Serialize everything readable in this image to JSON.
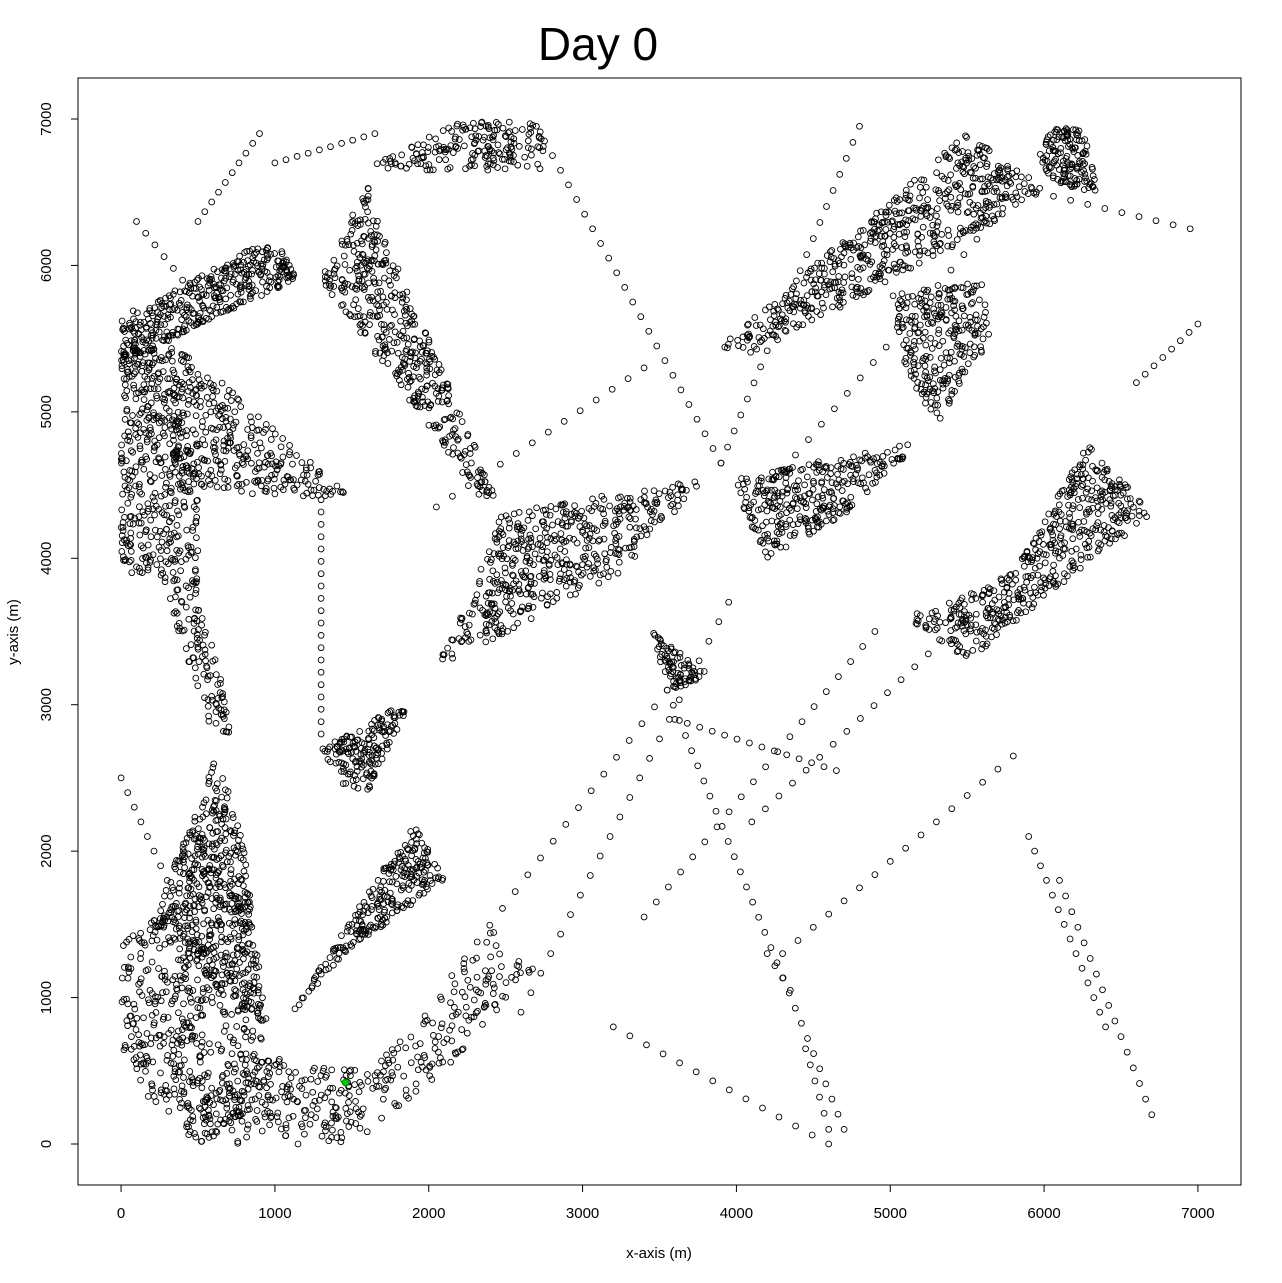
{
  "chart_data": {
    "type": "scatter",
    "title": "Day 0",
    "xlabel": "x-axis (m)",
    "ylabel": "y-axis (m)",
    "xlim": [
      -280,
      7280
    ],
    "ylim": [
      -280,
      7280
    ],
    "x_ticks": [
      0,
      1000,
      2000,
      3000,
      4000,
      5000,
      6000,
      7000
    ],
    "y_ticks": [
      0,
      1000,
      2000,
      3000,
      4000,
      5000,
      6000,
      7000
    ],
    "grid": false,
    "legend": "none",
    "marker": "open-circle",
    "colors": {
      "points": "#000000",
      "highlight": "#00cc00",
      "background": "#ffffff"
    },
    "highlight_points": [
      {
        "x": 1460,
        "y": 420
      }
    ],
    "dense_regions": [
      {
        "name": "upper-center-cluster",
        "poly": [
          [
            1650,
            6700
          ],
          [
            2200,
            6980
          ],
          [
            2750,
            6980
          ],
          [
            2750,
            6650
          ],
          [
            1650,
            6650
          ]
        ],
        "count": 180
      },
      {
        "name": "upper-left-band",
        "poly": [
          [
            0,
            5650
          ],
          [
            300,
            5800
          ],
          [
            900,
            6150
          ],
          [
            1050,
            6100
          ],
          [
            1150,
            5900
          ],
          [
            500,
            5600
          ],
          [
            0,
            5300
          ]
        ],
        "count": 360
      },
      {
        "name": "left-column",
        "poly": [
          [
            0,
            5650
          ],
          [
            400,
            5300
          ],
          [
            500,
            4400
          ],
          [
            500,
            3700
          ],
          [
            650,
            3300
          ],
          [
            720,
            2800
          ],
          [
            600,
            2800
          ],
          [
            400,
            3400
          ],
          [
            250,
            3900
          ],
          [
            0,
            3900
          ]
        ],
        "count": 520
      },
      {
        "name": "left-triangle",
        "poly": [
          [
            300,
            5450
          ],
          [
            500,
            5350
          ],
          [
            1450,
            4450
          ],
          [
            1200,
            4400
          ],
          [
            350,
            4500
          ]
        ],
        "count": 320
      },
      {
        "name": "center-top-triangle",
        "poly": [
          [
            1600,
            6550
          ],
          [
            1650,
            6350
          ],
          [
            2450,
            4400
          ],
          [
            2350,
            4400
          ],
          [
            1300,
            5900
          ]
        ],
        "count": 420
      },
      {
        "name": "center-big-triangle",
        "poly": [
          [
            2450,
            4300
          ],
          [
            3800,
            4550
          ],
          [
            3250,
            3900
          ],
          [
            2050,
            3250
          ],
          [
            2300,
            3800
          ]
        ],
        "count": 480
      },
      {
        "name": "upper-right-band",
        "poly": [
          [
            3900,
            5450
          ],
          [
            5500,
            6900
          ],
          [
            5900,
            6600
          ],
          [
            6000,
            6500
          ],
          [
            5200,
            6000
          ],
          [
            4100,
            5400
          ],
          [
            3800,
            5450
          ]
        ],
        "count": 560
      },
      {
        "name": "upper-right-cluster",
        "poly": [
          [
            5950,
            6700
          ],
          [
            6050,
            6950
          ],
          [
            6250,
            6950
          ],
          [
            6350,
            6500
          ],
          [
            6100,
            6550
          ]
        ],
        "count": 140
      },
      {
        "name": "right-vertical-triangle",
        "poly": [
          [
            5000,
            5800
          ],
          [
            5600,
            5900
          ],
          [
            5650,
            5500
          ],
          [
            5300,
            4900
          ],
          [
            5100,
            5300
          ]
        ],
        "count": 260
      },
      {
        "name": "center-right-triangle",
        "poly": [
          [
            4000,
            4550
          ],
          [
            5200,
            4800
          ],
          [
            4700,
            4300
          ],
          [
            4200,
            4000
          ],
          [
            4050,
            4300
          ]
        ],
        "count": 300
      },
      {
        "name": "right-parallelogram",
        "poly": [
          [
            5100,
            3600
          ],
          [
            5500,
            3300
          ],
          [
            6700,
            4300
          ],
          [
            6300,
            4800
          ],
          [
            5800,
            3900
          ],
          [
            5400,
            3700
          ]
        ],
        "count": 460
      },
      {
        "name": "small-center-triangle",
        "poly": [
          [
            3450,
            3500
          ],
          [
            3700,
            3300
          ],
          [
            3850,
            3200
          ],
          [
            3600,
            3100
          ],
          [
            3500,
            3300
          ]
        ],
        "count": 80
      },
      {
        "name": "lower-left-triangle",
        "poly": [
          [
            600,
            2600
          ],
          [
            200,
            1500
          ],
          [
            700,
            1000
          ],
          [
            950,
            800
          ],
          [
            800,
            2000
          ],
          [
            700,
            2500
          ]
        ],
        "count": 520
      },
      {
        "name": "lower-left-block",
        "poly": [
          [
            0,
            1400
          ],
          [
            400,
            1650
          ],
          [
            900,
            800
          ],
          [
            1000,
            300
          ],
          [
            500,
            0
          ],
          [
            0,
            500
          ]
        ],
        "count": 420
      },
      {
        "name": "bottom-band",
        "poly": [
          [
            500,
            0
          ],
          [
            1500,
            0
          ],
          [
            2100,
            500
          ],
          [
            2700,
            1200
          ],
          [
            2400,
            1500
          ],
          [
            2000,
            900
          ],
          [
            1600,
            500
          ],
          [
            1000,
            600
          ],
          [
            500,
            300
          ]
        ],
        "count": 360
      },
      {
        "name": "mid-left-triangle",
        "poly": [
          [
            1300,
            2700
          ],
          [
            1900,
            3050
          ],
          [
            1600,
            2400
          ],
          [
            1450,
            2450
          ]
        ],
        "count": 160
      },
      {
        "name": "mid-triangle",
        "poly": [
          [
            1050,
            800
          ],
          [
            1900,
            2200
          ],
          [
            2100,
            1800
          ],
          [
            1450,
            1300
          ]
        ],
        "count": 240
      }
    ],
    "sparse_lines": [
      {
        "from": [
          1300,
          4400
        ],
        "to": [
          1300,
          2800
        ],
        "count": 20
      },
      {
        "from": [
          2150,
          1150
        ],
        "to": [
          3550,
          3100
        ],
        "count": 18
      },
      {
        "from": [
          3900,
          4650
        ],
        "to": [
          4800,
          6950
        ],
        "count": 22
      },
      {
        "from": [
          3900,
          4650
        ],
        "to": [
          2700,
          6950
        ],
        "count": 24
      },
      {
        "from": [
          4300,
          4600
        ],
        "to": [
          5900,
          6600
        ],
        "count": 20
      },
      {
        "from": [
          3550,
          3100
        ],
        "to": [
          4700,
          100
        ],
        "count": 30
      },
      {
        "from": [
          2600,
          900
        ],
        "to": [
          3950,
          3700
        ],
        "count": 22
      },
      {
        "from": [
          3600,
          2900
        ],
        "to": [
          4650,
          2550
        ],
        "count": 14
      },
      {
        "from": [
          3400,
          1550
        ],
        "to": [
          4900,
          3500
        ],
        "count": 20
      },
      {
        "from": [
          4100,
          2200
        ],
        "to": [
          5600,
          3700
        ],
        "count": 18
      },
      {
        "from": [
          4300,
          1300
        ],
        "to": [
          5800,
          2650
        ],
        "count": 16
      },
      {
        "from": [
          5900,
          2100
        ],
        "to": [
          6400,
          800
        ],
        "count": 14
      },
      {
        "from": [
          6100,
          1800
        ],
        "to": [
          6700,
          200
        ],
        "count": 16
      },
      {
        "from": [
          6600,
          5200
        ],
        "to": [
          7000,
          5600
        ],
        "count": 8
      },
      {
        "from": [
          5950,
          6500
        ],
        "to": [
          6950,
          6250
        ],
        "count": 10
      },
      {
        "from": [
          1650,
          6900
        ],
        "to": [
          1000,
          6700
        ],
        "count": 10
      },
      {
        "from": [
          900,
          6900
        ],
        "to": [
          500,
          6300
        ],
        "count": 10
      },
      {
        "from": [
          100,
          6300
        ],
        "to": [
          400,
          5900
        ],
        "count": 6
      },
      {
        "from": [
          0,
          2500
        ],
        "to": [
          300,
          1800
        ],
        "count": 8
      },
      {
        "from": [
          2050,
          4350
        ],
        "to": [
          3400,
          5300
        ],
        "count": 14
      },
      {
        "from": [
          3200,
          800
        ],
        "to": [
          4600,
          0
        ],
        "count": 14
      },
      {
        "from": [
          4450,
          650
        ],
        "to": [
          4600,
          100
        ],
        "count": 6
      },
      {
        "from": [
          4200,
          1300
        ],
        "to": [
          4350,
          1050
        ],
        "count": 4
      }
    ]
  }
}
